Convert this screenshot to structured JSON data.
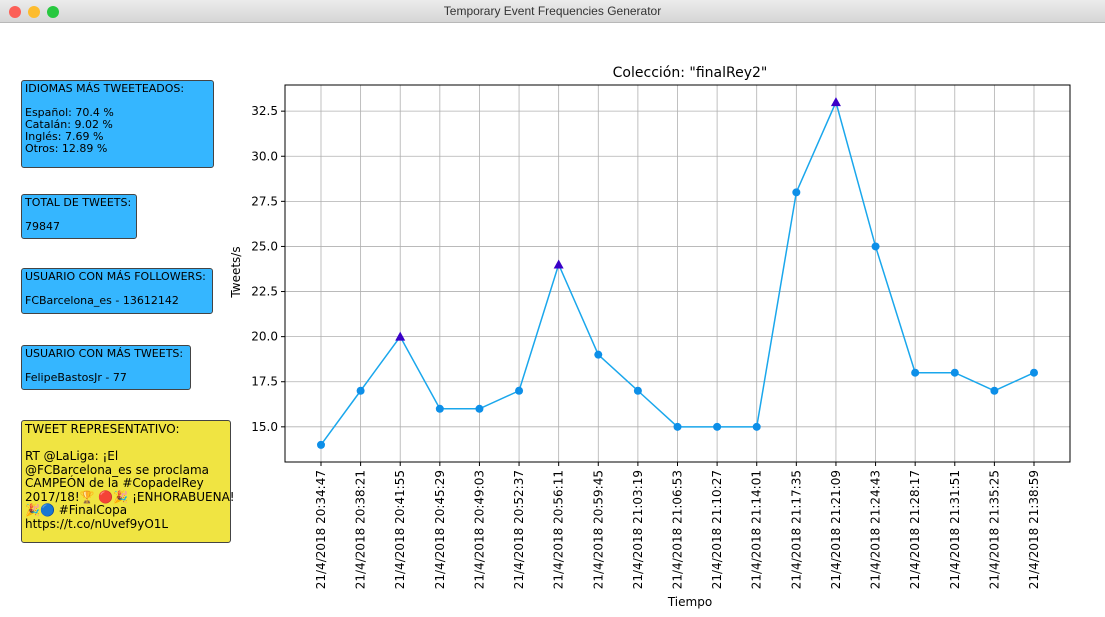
{
  "window_title": "Temporary Event Frequencies Generator",
  "panels": [
    {
      "title": "IDIOMAS MÁS TWEETEADOS:",
      "lines": [
        "Español: 70.4 %",
        "Catalán: 9.02 %",
        "Inglés: 7.69 %",
        "Otros: 12.89 %"
      ]
    },
    {
      "title": "TOTAL DE TWEETS:",
      "lines": [
        "79847"
      ]
    },
    {
      "title": "USUARIO CON MÁS FOLLOWERS:",
      "lines": [
        "FCBarcelona_es - 13612142"
      ]
    },
    {
      "title": "USUARIO CON MÁS TWEETS:",
      "lines": [
        "FelipeBastosJr - 77"
      ]
    },
    {
      "title": "TWEET REPRESENTATIVO:",
      "lines": [
        "RT @LaLiga: ¡El",
        "@FCBarcelona_es se proclama",
        "CAMPEÓN de la #CopadelRey",
        "2017/18!🏆 🔴🎉 ¡ENHORABUENA!",
        "🎉🔵 #FinalCopa",
        "https://t.co/nUvef9yO1L"
      ]
    }
  ],
  "chart_data": {
    "type": "line",
    "title": "Colección: \"finalRey2\"",
    "x_label": "Tiempo",
    "y_label": "Tweets/s",
    "categories": [
      "21/4/2018 20:34:47",
      "21/4/2018 20:38:21",
      "21/4/2018 20:41:55",
      "21/4/2018 20:45:29",
      "21/4/2018 20:49:03",
      "21/4/2018 20:52:37",
      "21/4/2018 20:56:11",
      "21/4/2018 20:59:45",
      "21/4/2018 21:03:19",
      "21/4/2018 21:06:53",
      "21/4/2018 21:10:27",
      "21/4/2018 21:14:01",
      "21/4/2018 21:17:35",
      "21/4/2018 21:21:09",
      "21/4/2018 21:24:43",
      "21/4/2018 21:28:17",
      "21/4/2018 21:31:51",
      "21/4/2018 21:35:25",
      "21/4/2018 21:38:59"
    ],
    "values": [
      14,
      17,
      20,
      16,
      16,
      17,
      24,
      19,
      17,
      15,
      15,
      15,
      28,
      33,
      25,
      18,
      18,
      17,
      18
    ],
    "color": "#1aa7ec",
    "marker_color": "#0d8fe8",
    "peak_indices": [
      2,
      6,
      13
    ],
    "peak_color": "#3a00c8",
    "ylim": [
      13.05,
      33.95
    ],
    "yticks": [
      {
        "value": 15,
        "label": "15.0"
      },
      {
        "value": 17.5,
        "label": "17.5"
      },
      {
        "value": 20,
        "label": "20.0"
      },
      {
        "value": 22.5,
        "label": "22.5"
      },
      {
        "value": 25,
        "label": "25.0"
      },
      {
        "value": 27.5,
        "label": "27.5"
      },
      {
        "value": 30,
        "label": "30.0"
      },
      {
        "value": 32.5,
        "label": "32.5"
      }
    ],
    "grid": true
  }
}
